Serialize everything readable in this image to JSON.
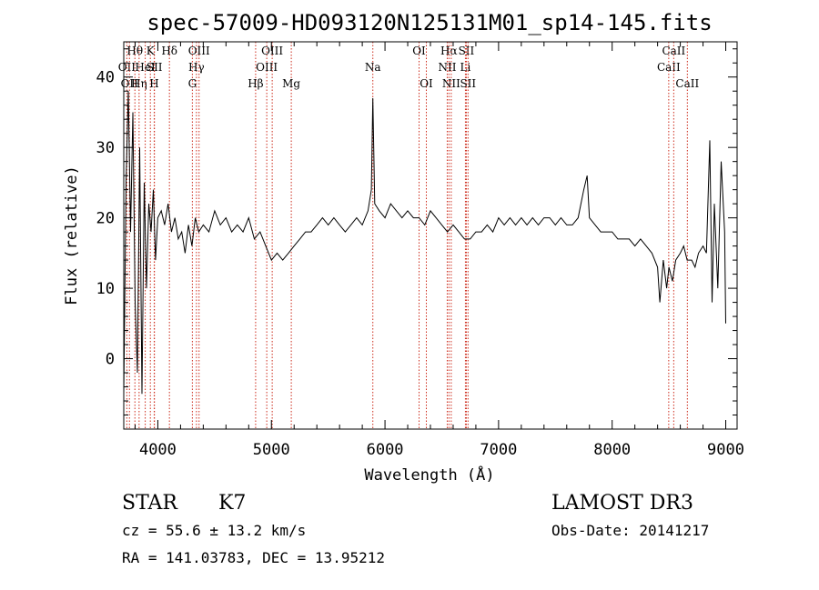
{
  "chart_data": {
    "type": "line",
    "title": "spec-57009-HD093120N125131M01_sp14-145.fits",
    "xlabel": "Wavelength (Å)",
    "ylabel": "Flux (relative)",
    "xlim": [
      3700,
      9100
    ],
    "ylim": [
      -10,
      45
    ],
    "xticks": [
      4000,
      5000,
      6000,
      7000,
      8000,
      9000
    ],
    "yticks": [
      0,
      10,
      20,
      30,
      40
    ],
    "grid": false,
    "line_color": "#000000",
    "marker_color": "#cc2a1a",
    "series": [
      {
        "x": [
          3700,
          3720,
          3740,
          3760,
          3780,
          3800,
          3820,
          3840,
          3860,
          3880,
          3900,
          3920,
          3940,
          3960,
          3980,
          4000,
          4030,
          4060,
          4090,
          4120,
          4150,
          4180,
          4210,
          4240,
          4270,
          4300,
          4330,
          4360,
          4400,
          4450,
          4500,
          4550,
          4600,
          4650,
          4700,
          4750,
          4800,
          4850,
          4900,
          4950,
          5000,
          5050,
          5100,
          5150,
          5200,
          5250,
          5300,
          5350,
          5400,
          5450,
          5500,
          5550,
          5600,
          5650,
          5700,
          5750,
          5800,
          5850,
          5880,
          5893,
          5910,
          5950,
          6000,
          6050,
          6100,
          6150,
          6200,
          6250,
          6300,
          6350,
          6400,
          6450,
          6500,
          6550,
          6600,
          6650,
          6700,
          6750,
          6800,
          6850,
          6900,
          6950,
          7000,
          7050,
          7100,
          7150,
          7200,
          7250,
          7300,
          7350,
          7400,
          7450,
          7500,
          7550,
          7600,
          7650,
          7700,
          7750,
          7780,
          7800,
          7850,
          7900,
          7950,
          8000,
          8050,
          8100,
          8150,
          8200,
          8250,
          8300,
          8350,
          8400,
          8420,
          8450,
          8480,
          8500,
          8530,
          8560,
          8600,
          8630,
          8660,
          8700,
          8730,
          8760,
          8800,
          8830,
          8860,
          8880,
          8900,
          8930,
          8960,
          8990,
          9000
        ],
        "y": [
          -5,
          25,
          38,
          18,
          35,
          8,
          -2,
          30,
          -5,
          25,
          10,
          22,
          18,
          24,
          14,
          20,
          21,
          19,
          22,
          18,
          20,
          17,
          18,
          15,
          19,
          16,
          20,
          18,
          19,
          18,
          21,
          19,
          20,
          18,
          19,
          18,
          20,
          17,
          18,
          16,
          14,
          15,
          14,
          15,
          16,
          17,
          18,
          18,
          19,
          20,
          19,
          20,
          19,
          18,
          19,
          20,
          19,
          21,
          24,
          37,
          22,
          21,
          20,
          22,
          21,
          20,
          21,
          20,
          20,
          19,
          21,
          20,
          19,
          18,
          19,
          18,
          17,
          17,
          18,
          18,
          19,
          18,
          20,
          19,
          20,
          19,
          20,
          19,
          20,
          19,
          20,
          20,
          19,
          20,
          19,
          19,
          20,
          24,
          26,
          20,
          19,
          18,
          18,
          18,
          17,
          17,
          17,
          16,
          17,
          16,
          15,
          13,
          8,
          14,
          10,
          13,
          11,
          14,
          15,
          16,
          14,
          14,
          13,
          15,
          16,
          15,
          31,
          8,
          22,
          10,
          28,
          18,
          5
        ]
      }
    ],
    "line_markers": [
      {
        "wavelength": 3727,
        "row": 1,
        "label": "OII"
      },
      {
        "wavelength": 3750,
        "row": 2,
        "label": "OII"
      },
      {
        "wavelength": 3798,
        "row": 0,
        "label": "Hθ"
      },
      {
        "wavelength": 3835,
        "row": 2,
        "label": "Hη"
      },
      {
        "wavelength": 3889,
        "row": 1,
        "label": "HeI"
      },
      {
        "wavelength": 3934,
        "row": 0,
        "label": "K"
      },
      {
        "wavelength": 3968,
        "row": 2,
        "label": "H"
      },
      {
        "wavelength": 3970,
        "row": 1,
        "label": "SII"
      },
      {
        "wavelength": 4102,
        "row": 0,
        "label": "Hδ"
      },
      {
        "wavelength": 4304,
        "row": 2,
        "label": "G"
      },
      {
        "wavelength": 4340,
        "row": 1,
        "label": "Hγ"
      },
      {
        "wavelength": 4363,
        "row": 0,
        "label": "OIII"
      },
      {
        "wavelength": 4861,
        "row": 2,
        "label": "Hβ"
      },
      {
        "wavelength": 4959,
        "row": 1,
        "label": "OIII"
      },
      {
        "wavelength": 5007,
        "row": 0,
        "label": "OIII"
      },
      {
        "wavelength": 5175,
        "row": 2,
        "label": "Mg"
      },
      {
        "wavelength": 5893,
        "row": 1,
        "label": "Na"
      },
      {
        "wavelength": 6300,
        "row": 0,
        "label": "OI"
      },
      {
        "wavelength": 6364,
        "row": 2,
        "label": "OI"
      },
      {
        "wavelength": 6548,
        "row": 1,
        "label": "NII"
      },
      {
        "wavelength": 6563,
        "row": 0,
        "label": "Hα"
      },
      {
        "wavelength": 6583,
        "row": 2,
        "label": "NII"
      },
      {
        "wavelength": 6708,
        "row": 1,
        "label": "Li"
      },
      {
        "wavelength": 6716,
        "row": 0,
        "label": "SII"
      },
      {
        "wavelength": 6731,
        "row": 2,
        "label": "SII"
      },
      {
        "wavelength": 8498,
        "row": 1,
        "label": "CaII"
      },
      {
        "wavelength": 8542,
        "row": 0,
        "label": "CaII"
      },
      {
        "wavelength": 8662,
        "row": 2,
        "label": "CaII"
      }
    ]
  },
  "info": {
    "object_class": "STAR",
    "subclass": "K7",
    "survey": "LAMOST DR3",
    "redshift": "cz = 55.6 ± 13.2 km/s",
    "obs_date": "Obs-Date: 20141217",
    "coords": "RA = 141.03783, DEC =  13.95212"
  }
}
